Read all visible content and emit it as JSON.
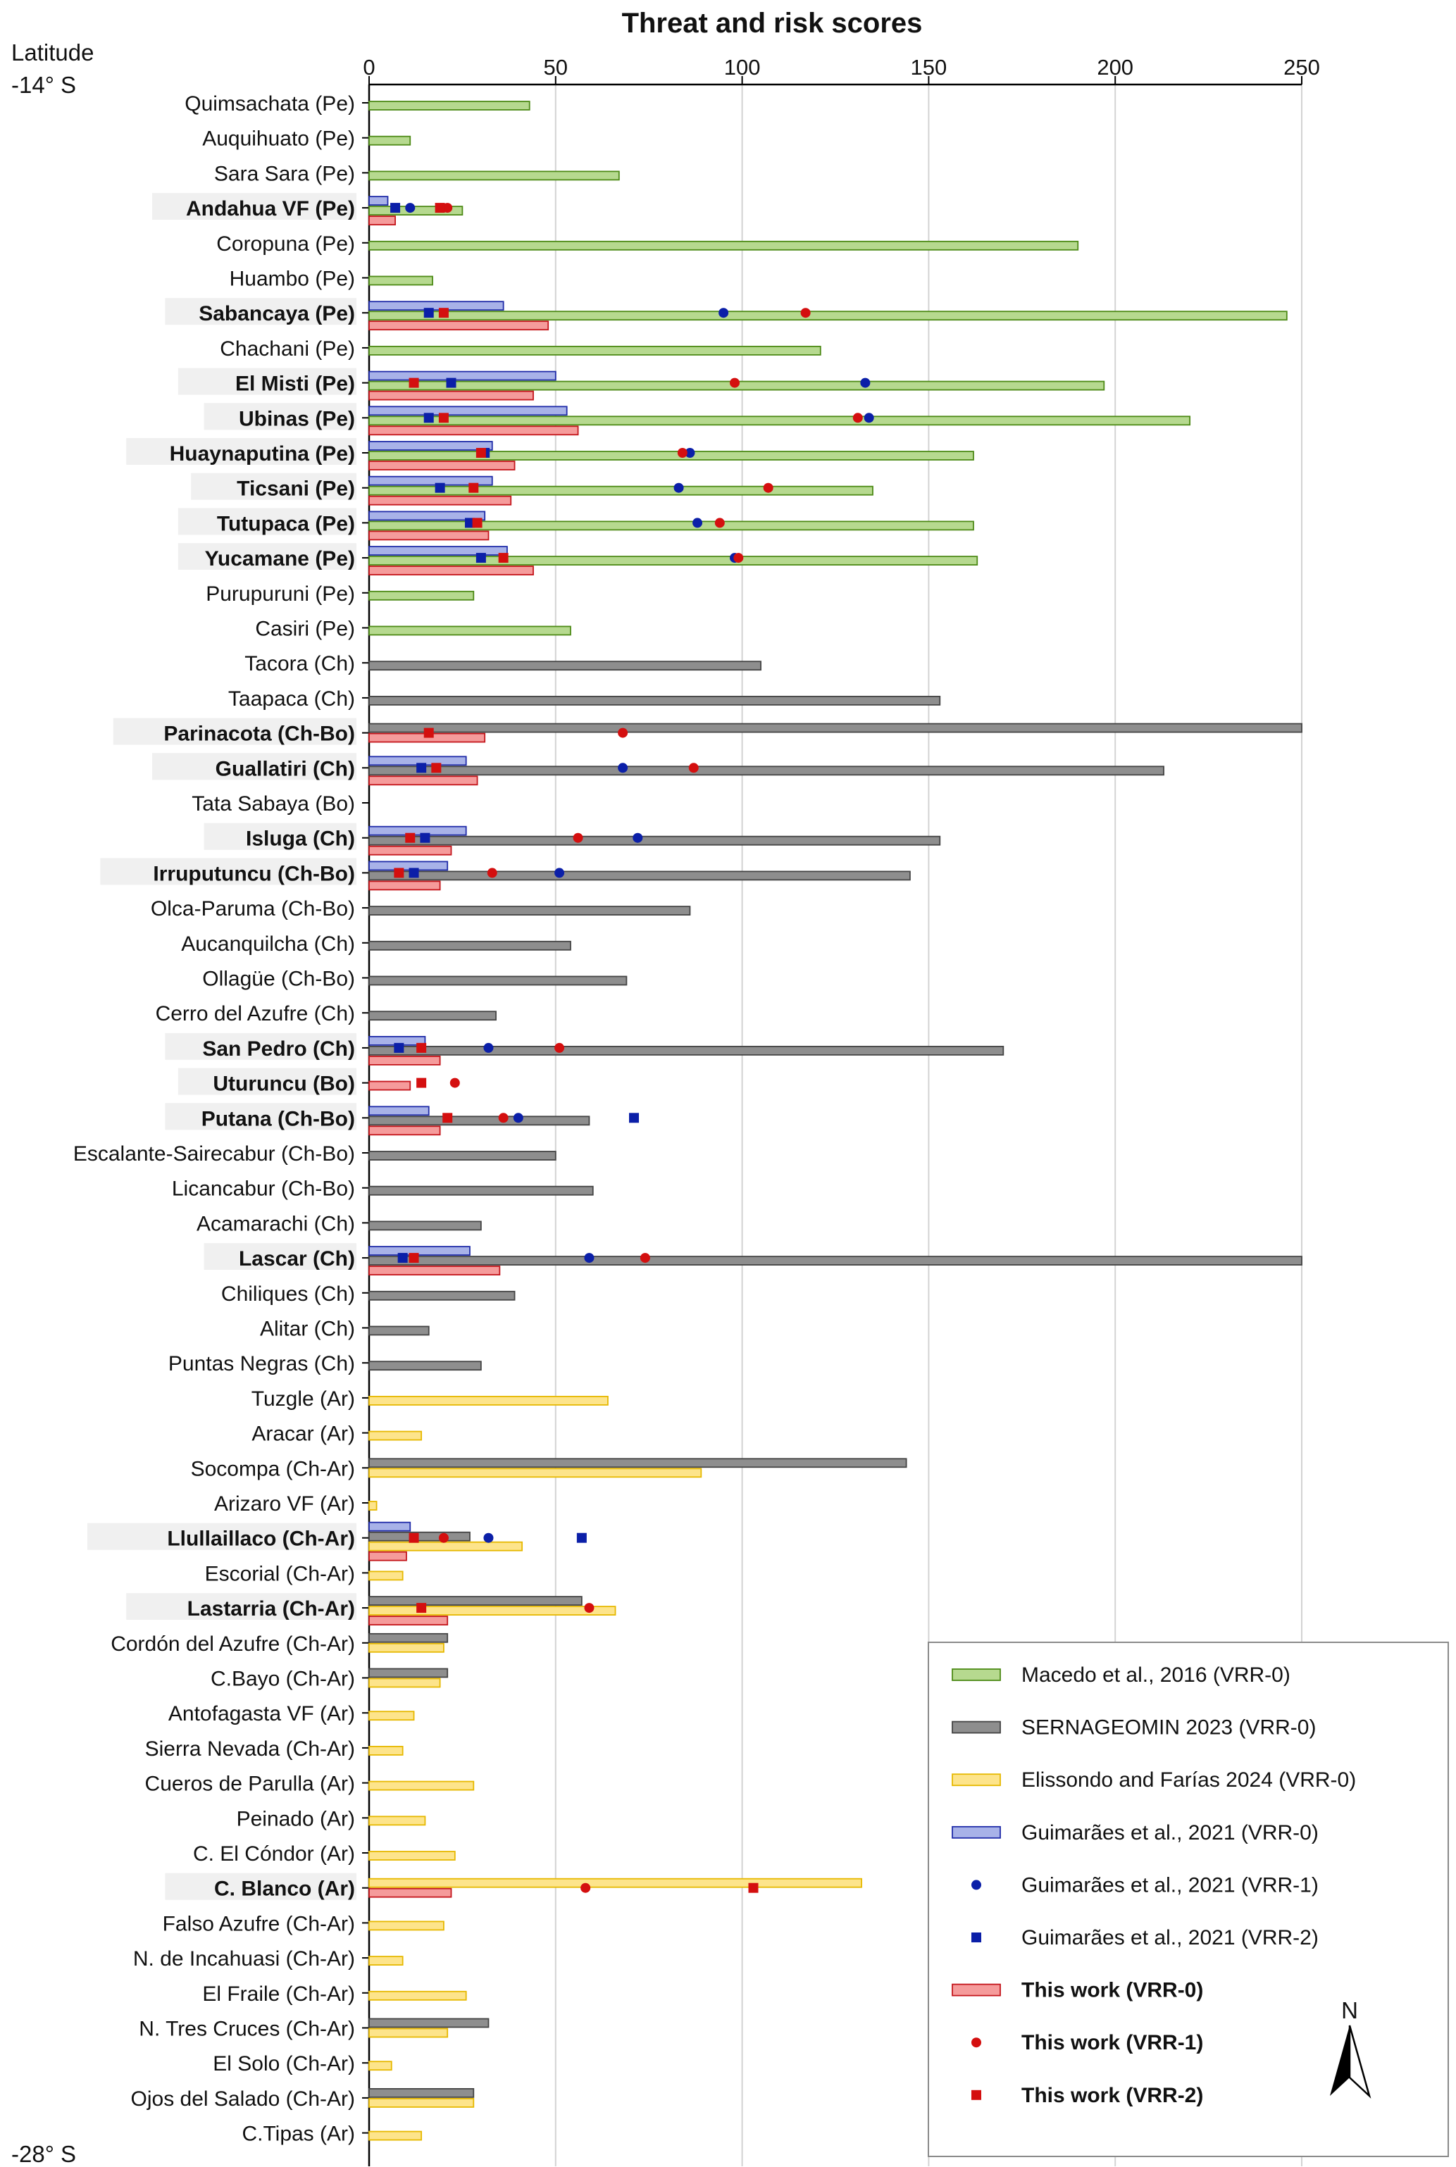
{
  "chart_data": {
    "type": "bar",
    "orientation": "horizontal",
    "title": "Threat and risk scores",
    "xlabel": "Threat and risk scores",
    "xlim": [
      0,
      250
    ],
    "xticks": [
      0,
      50,
      100,
      150,
      200,
      250
    ],
    "ylabel_top": "Latitude",
    "lat_top": "-14° S",
    "lat_bottom": "-28° S",
    "grid": "vertical",
    "legend_position": "bottom-right",
    "north_label": "N",
    "colors": {
      "macedo": "#b6d98f",
      "sern": "#8e8e8e",
      "eliss": "#fde48b",
      "guim": "#a8b2e8",
      "this": "#f59b9b",
      "blue_marker": "#0b1fa8",
      "red_marker": "#d40f0f"
    },
    "series": [
      {
        "key": "macedo",
        "name": "Macedo et al., 2016 (VRR-0)",
        "kind": "bar"
      },
      {
        "key": "sern",
        "name": "SERNAGEOMIN 2023 (VRR-0)",
        "kind": "bar"
      },
      {
        "key": "eliss",
        "name": "Elissondo and Farías 2024 (VRR-0)",
        "kind": "bar"
      },
      {
        "key": "guim0",
        "name": "Guimarães et al., 2021 (VRR-0)",
        "kind": "bar"
      },
      {
        "key": "guim1",
        "name": "Guimarães et al., 2021 (VRR-1)",
        "kind": "circle"
      },
      {
        "key": "guim2",
        "name": "Guimarães et al., 2021 (VRR-2)",
        "kind": "square"
      },
      {
        "key": "this0",
        "name": "This work (VRR-0)",
        "kind": "bar"
      },
      {
        "key": "this1",
        "name": "This work (VRR-1)",
        "kind": "circle"
      },
      {
        "key": "this2",
        "name": "This work (VRR-2)",
        "kind": "square"
      }
    ],
    "volcanoes": [
      {
        "name": "Quimsachata (Pe)",
        "bold": false,
        "macedo": 43
      },
      {
        "name": "Auquihuato (Pe)",
        "bold": false,
        "macedo": 11
      },
      {
        "name": "Sara Sara (Pe)",
        "bold": false,
        "macedo": 67
      },
      {
        "name": "Andahua VF (Pe)",
        "bold": true,
        "guim0": 5,
        "macedo": 25,
        "this0": 7,
        "guim1": 11,
        "guim2": 7,
        "this1": 21,
        "this2": 19
      },
      {
        "name": "Coropuna (Pe)",
        "bold": false,
        "macedo": 190
      },
      {
        "name": "Huambo (Pe)",
        "bold": false,
        "macedo": 17
      },
      {
        "name": "Sabancaya (Pe)",
        "bold": true,
        "guim0": 36,
        "macedo": 246,
        "this0": 48,
        "guim1": 95,
        "guim2": 16,
        "this1": 117,
        "this2": 20
      },
      {
        "name": "Chachani (Pe)",
        "bold": false,
        "macedo": 121
      },
      {
        "name": "El Misti (Pe)",
        "bold": true,
        "guim0": 50,
        "macedo": 197,
        "this0": 44,
        "guim1": 133,
        "guim2": 22,
        "this1": 98,
        "this2": 12
      },
      {
        "name": "Ubinas (Pe)",
        "bold": true,
        "guim0": 53,
        "macedo": 220,
        "this0": 56,
        "guim1": 134,
        "guim2": 16,
        "this1": 131,
        "this2": 20
      },
      {
        "name": "Huaynaputina (Pe)",
        "bold": true,
        "guim0": 33,
        "macedo": 162,
        "this0": 39,
        "guim1": 86,
        "guim2": 31,
        "this1": 84,
        "this2": 30
      },
      {
        "name": "Ticsani (Pe)",
        "bold": true,
        "guim0": 33,
        "macedo": 135,
        "this0": 38,
        "guim1": 83,
        "guim2": 19,
        "this1": 107,
        "this2": 28
      },
      {
        "name": "Tutupaca (Pe)",
        "bold": true,
        "guim0": 31,
        "macedo": 162,
        "this0": 32,
        "guim1": 88,
        "guim2": 27,
        "this1": 94,
        "this2": 29
      },
      {
        "name": "Yucamane (Pe)",
        "bold": true,
        "guim0": 37,
        "macedo": 163,
        "this0": 44,
        "guim1": 98,
        "guim2": 30,
        "this1": 99,
        "this2": 36
      },
      {
        "name": "Purupuruni (Pe)",
        "bold": false,
        "macedo": 28
      },
      {
        "name": "Casiri (Pe)",
        "bold": false,
        "macedo": 54
      },
      {
        "name": "Tacora (Ch)",
        "bold": false,
        "sern": 105
      },
      {
        "name": "Taapaca (Ch)",
        "bold": false,
        "sern": 153
      },
      {
        "name": "Parinacota (Ch-Bo)",
        "bold": true,
        "sern": 250,
        "this0": 31,
        "this1": 68,
        "this2": 16
      },
      {
        "name": "Guallatiri (Ch)",
        "bold": true,
        "guim0": 26,
        "sern": 213,
        "this0": 29,
        "guim1": 68,
        "guim2": 14,
        "this1": 87,
        "this2": 18
      },
      {
        "name": "Tata Sabaya (Bo)",
        "bold": false
      },
      {
        "name": "Isluga (Ch)",
        "bold": true,
        "guim0": 26,
        "sern": 153,
        "this0": 22,
        "guim1": 72,
        "guim2": 15,
        "this1": 56,
        "this2": 11
      },
      {
        "name": "Irruputuncu (Ch-Bo)",
        "bold": true,
        "guim0": 21,
        "sern": 145,
        "this0": 19,
        "guim1": 51,
        "guim2": 12,
        "this1": 33,
        "this2": 8
      },
      {
        "name": "Olca-Paruma (Ch-Bo)",
        "bold": false,
        "sern": 86
      },
      {
        "name": "Aucanquilcha (Ch)",
        "bold": false,
        "sern": 54
      },
      {
        "name": "Ollagüe (Ch-Bo)",
        "bold": false,
        "sern": 69
      },
      {
        "name": "Cerro del Azufre (Ch)",
        "bold": false,
        "sern": 34
      },
      {
        "name": "San Pedro (Ch)",
        "bold": true,
        "guim0": 15,
        "sern": 170,
        "this0": 19,
        "guim1": 32,
        "guim2": 8,
        "this1": 51,
        "this2": 14
      },
      {
        "name": "Uturuncu (Bo)",
        "bold": true,
        "this0": 11,
        "this1": 23,
        "this2": 14
      },
      {
        "name": "Putana (Ch-Bo)",
        "bold": true,
        "guim0": 16,
        "sern": 59,
        "this0": 19,
        "guim1": 40,
        "guim2": 71,
        "this1": 36,
        "this2": 21
      },
      {
        "name": "Escalante-Sairecabur (Ch-Bo)",
        "bold": false,
        "sern": 50
      },
      {
        "name": "Licancabur (Ch-Bo)",
        "bold": false,
        "sern": 60
      },
      {
        "name": "Acamarachi (Ch)",
        "bold": false,
        "sern": 30
      },
      {
        "name": "Lascar (Ch)",
        "bold": true,
        "guim0": 27,
        "sern": 250,
        "this0": 35,
        "guim1": 59,
        "guim2": 9,
        "this1": 74,
        "this2": 12
      },
      {
        "name": "Chiliques (Ch)",
        "bold": false,
        "sern": 39
      },
      {
        "name": "Alitar (Ch)",
        "bold": false,
        "sern": 16
      },
      {
        "name": "Puntas Negras (Ch)",
        "bold": false,
        "sern": 30
      },
      {
        "name": "Tuzgle (Ar)",
        "bold": false,
        "eliss": 64
      },
      {
        "name": "Aracar (Ar)",
        "bold": false,
        "eliss": 14
      },
      {
        "name": "Socompa (Ch-Ar)",
        "bold": false,
        "sern": 144,
        "eliss": 89
      },
      {
        "name": "Arizaro VF (Ar)",
        "bold": false,
        "eliss": 2
      },
      {
        "name": "Llullaillaco (Ch-Ar)",
        "bold": true,
        "guim0": 11,
        "sern": 27,
        "eliss": 41,
        "this0": 10,
        "guim1": 32,
        "guim2": 57,
        "this1": 20,
        "this2": 12
      },
      {
        "name": "Escorial (Ch-Ar)",
        "bold": false,
        "eliss": 9
      },
      {
        "name": "Lastarria (Ch-Ar)",
        "bold": true,
        "sern": 57,
        "eliss": 66,
        "this0": 21,
        "this1": 59,
        "this2": 14
      },
      {
        "name": "Cordón del Azufre (Ch-Ar)",
        "bold": false,
        "sern": 21,
        "eliss": 20
      },
      {
        "name": "C.Bayo (Ch-Ar)",
        "bold": false,
        "sern": 21,
        "eliss": 19
      },
      {
        "name": "Antofagasta VF (Ar)",
        "bold": false,
        "eliss": 12
      },
      {
        "name": "Sierra Nevada (Ch-Ar)",
        "bold": false,
        "eliss": 9
      },
      {
        "name": "Cueros de Parulla (Ar)",
        "bold": false,
        "eliss": 28
      },
      {
        "name": "Peinado (Ar)",
        "bold": false,
        "eliss": 15
      },
      {
        "name": "C. El Cóndor (Ar)",
        "bold": false,
        "eliss": 23
      },
      {
        "name": "C. Blanco (Ar)",
        "bold": true,
        "eliss": 132,
        "this0": 22,
        "this1": 58,
        "this2": 103
      },
      {
        "name": "Falso Azufre (Ch-Ar)",
        "bold": false,
        "eliss": 20
      },
      {
        "name": "N. de Incahuasi (Ch-Ar)",
        "bold": false,
        "eliss": 9
      },
      {
        "name": "El Fraile (Ch-Ar)",
        "bold": false,
        "eliss": 26
      },
      {
        "name": "N. Tres Cruces (Ch-Ar)",
        "bold": false,
        "sern": 32,
        "eliss": 21
      },
      {
        "name": "El Solo (Ch-Ar)",
        "bold": false,
        "eliss": 6
      },
      {
        "name": "Ojos del Salado (Ch-Ar)",
        "bold": false,
        "sern": 28,
        "eliss": 28
      },
      {
        "name": "C.Tipas (Ar)",
        "bold": false,
        "eliss": 14
      }
    ]
  }
}
